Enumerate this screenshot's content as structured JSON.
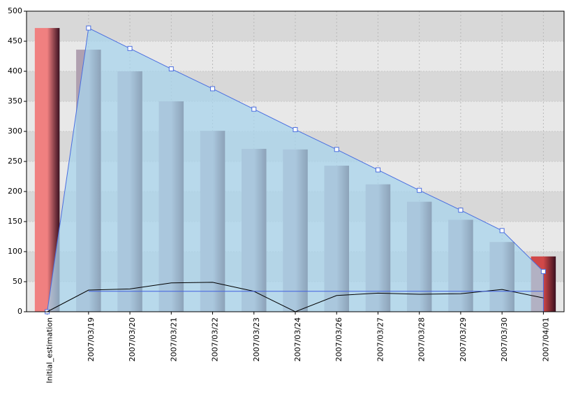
{
  "chart_data": {
    "type": "bar",
    "categories": [
      "Initial_estimation",
      "2007/03/19",
      "2007/03/20",
      "2007/03/21",
      "2007/03/22",
      "2007/03/23",
      "2007/03/24",
      "2007/03/26",
      "2007/03/27",
      "2007/03/28",
      "2007/03/29",
      "2007/03/30",
      "2007/04/01"
    ],
    "series": [
      {
        "type": "bar",
        "values": [
          472,
          436,
          400,
          350,
          301,
          271,
          270,
          243,
          212,
          183,
          153,
          116,
          92
        ],
        "colors": [
          "#f08080",
          "#b0a0b0",
          "#b0a0b0",
          "#b0a0b0",
          "#b0a0b0",
          "#b0a0b0",
          "#b0a0b0",
          "#b0a0b0",
          "#b0a0b0",
          "#b0a0b0",
          "#b0a0b0",
          "#b0a0b0",
          "#d04848"
        ]
      },
      {
        "type": "area",
        "color": "#4a6ee0",
        "fill": "#a8d4ec",
        "values": [
          0,
          472,
          438,
          404,
          371,
          337,
          303,
          270,
          236,
          202,
          169,
          135,
          67
        ]
      },
      {
        "type": "line",
        "color": "#000000",
        "values": [
          0,
          36,
          38,
          48,
          49,
          34,
          0,
          27,
          31,
          29,
          30,
          37,
          23
        ]
      },
      {
        "type": "line",
        "color": "#4060e0",
        "values": [
          null,
          34,
          34,
          34,
          34,
          34,
          34,
          34,
          34,
          34,
          34,
          34,
          34
        ]
      }
    ],
    "ylim": [
      0,
      500
    ],
    "yticks": [
      0,
      50,
      100,
      150,
      200,
      250,
      300,
      350,
      400,
      450,
      500
    ],
    "grid": true
  }
}
